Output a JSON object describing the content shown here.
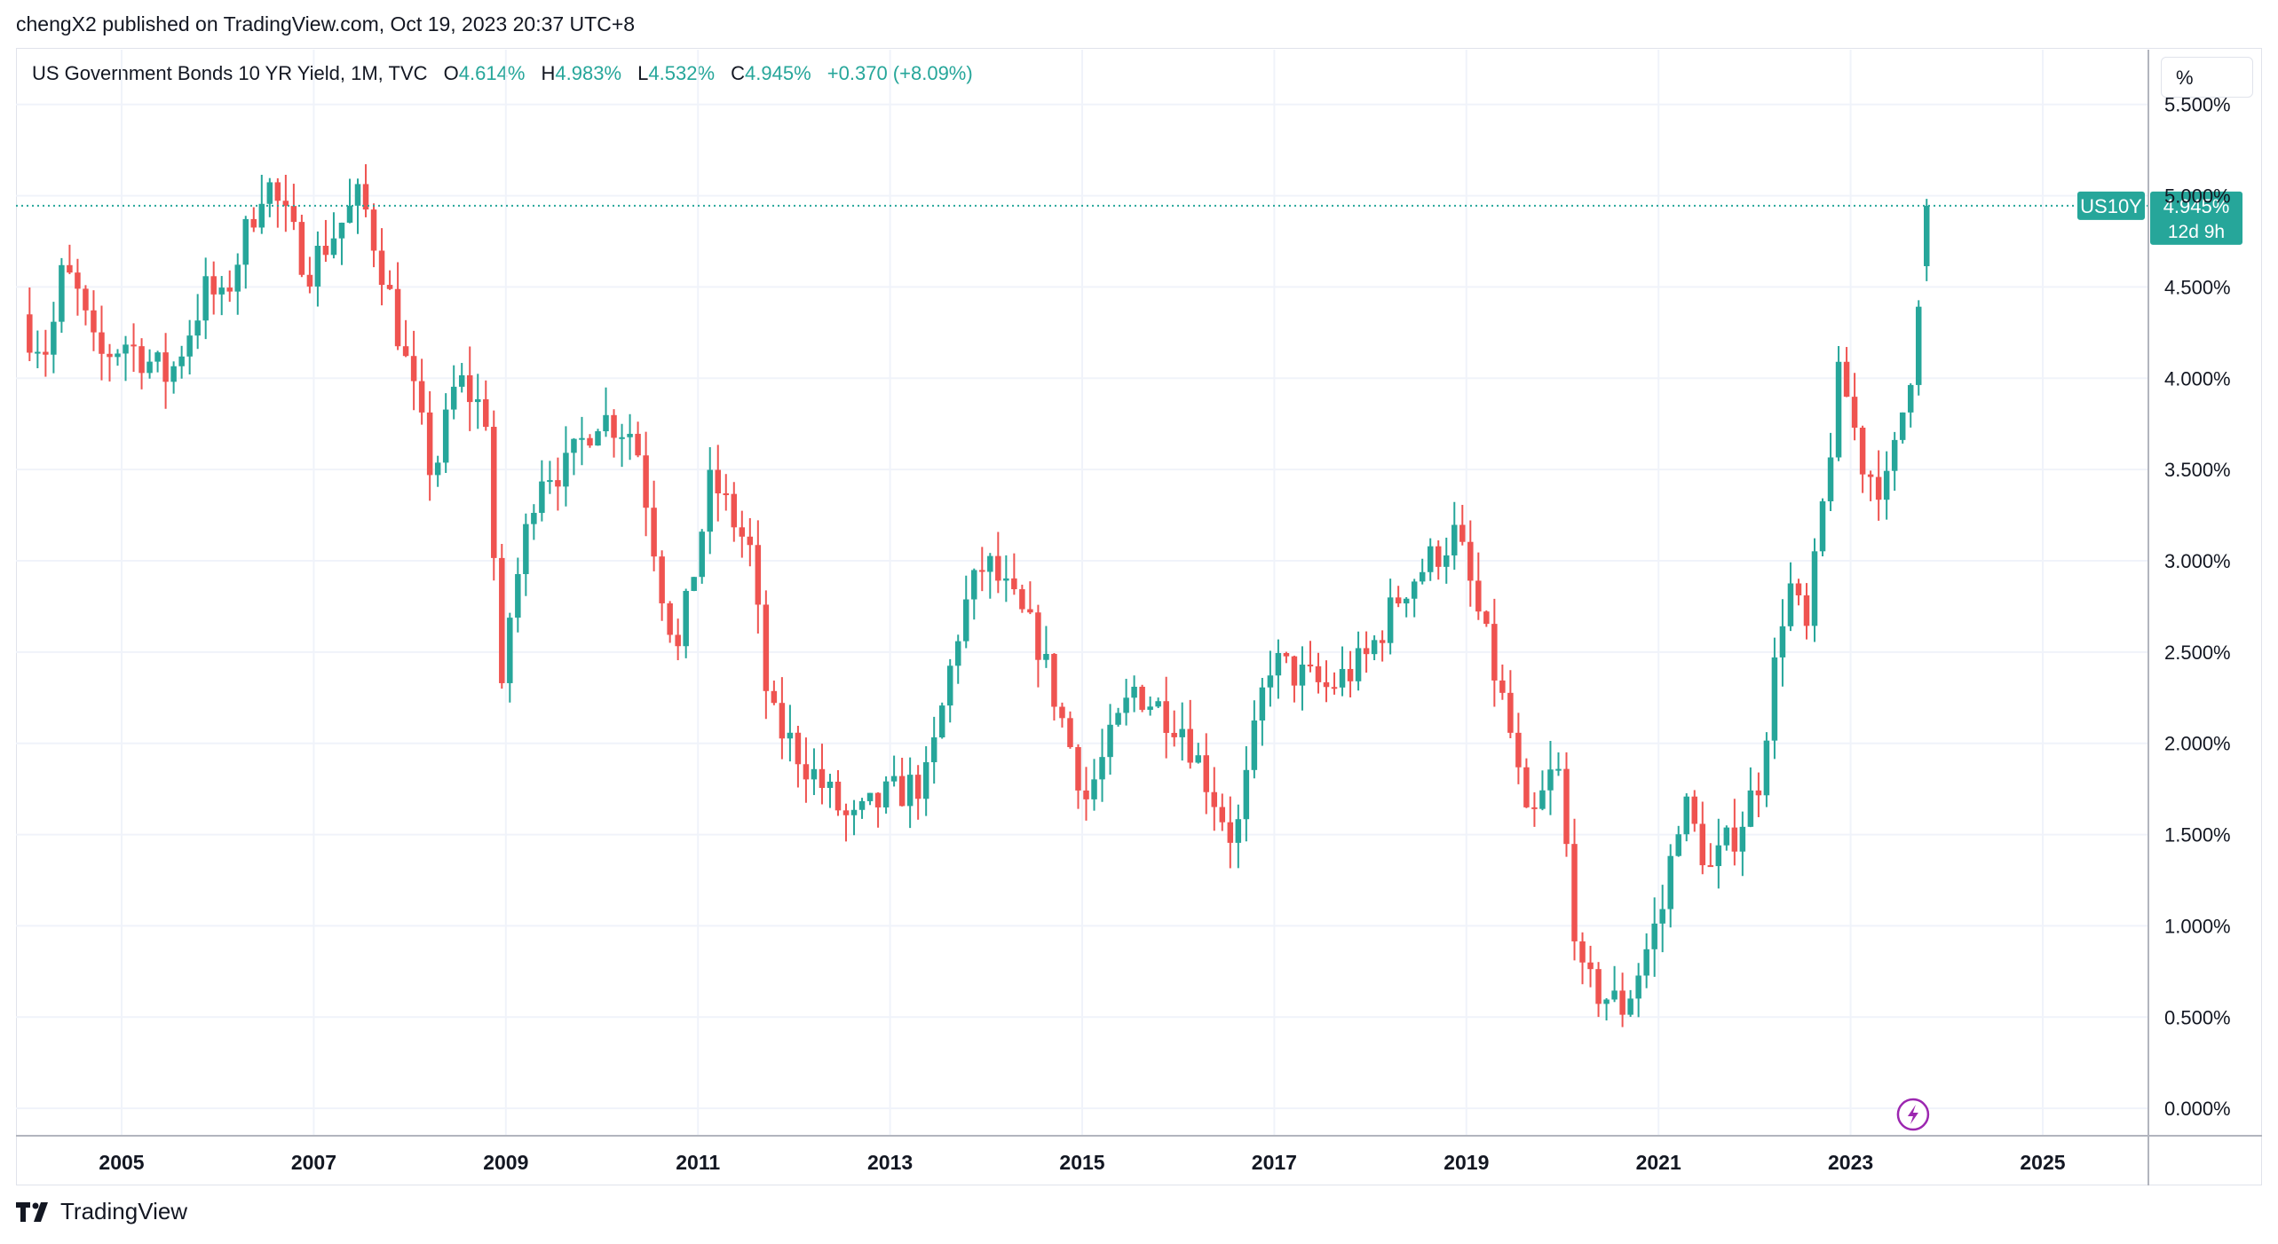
{
  "publisher_line": "chengX2 published on TradingView.com, Oct 19, 2023 20:37 UTC+8",
  "legend": {
    "symbol": "US Government Bonds 10 YR Yield, 1M, TVC",
    "o_label": "O",
    "o_value": "4.614%",
    "h_label": "H",
    "h_value": "4.983%",
    "l_label": "L",
    "l_value": "4.532%",
    "c_label": "C",
    "c_value": "4.945%",
    "change": "+0.370 (+8.09%)"
  },
  "unit_label": "%",
  "last_price": {
    "ticker": "US10Y",
    "value": "4.945%",
    "countdown": "12d 9h",
    "level": 4.945
  },
  "footer": {
    "brand": "TradingView"
  },
  "colors": {
    "up": "#26a69a",
    "down": "#ef5350",
    "grid": "#f0f3fa",
    "accent": "#9c27b0"
  },
  "icons": {
    "logo": "tradingview-logo-icon",
    "flash": "lightning-icon"
  },
  "chart_data": {
    "type": "candlestick",
    "title": "US Government Bonds 10 YR Yield, 1M, TVC",
    "interval": "1M",
    "xlabel": "",
    "ylabel": "%",
    "x_range": [
      2003.9,
      2026.1
    ],
    "ylim": [
      -0.15,
      5.8
    ],
    "x_ticks": [
      "2005",
      "2007",
      "2009",
      "2011",
      "2013",
      "2015",
      "2017",
      "2019",
      "2021",
      "2023",
      "2025"
    ],
    "y_ticks": [
      "5.500%",
      "5.000%",
      "4.500%",
      "4.000%",
      "3.500%",
      "3.000%",
      "2.500%",
      "2.000%",
      "1.500%",
      "1.000%",
      "0.500%",
      "0.000%"
    ],
    "anchors_year_close": [
      [
        2004.0,
        4.25
      ],
      [
        2004.2,
        4.15
      ],
      [
        2004.35,
        4.6
      ],
      [
        2004.5,
        4.45
      ],
      [
        2004.7,
        4.1
      ],
      [
        2005.0,
        4.2
      ],
      [
        2005.45,
        4.0
      ],
      [
        2005.85,
        4.5
      ],
      [
        2006.0,
        4.4
      ],
      [
        2006.45,
        5.1
      ],
      [
        2006.9,
        4.6
      ],
      [
        2007.45,
        5.0
      ],
      [
        2007.7,
        4.55
      ],
      [
        2008.0,
        3.9
      ],
      [
        2008.2,
        3.45
      ],
      [
        2008.45,
        4.0
      ],
      [
        2008.75,
        3.8
      ],
      [
        2008.92,
        2.2
      ],
      [
        2009.0,
        2.7
      ],
      [
        2009.3,
        3.5
      ],
      [
        2009.6,
        3.5
      ],
      [
        2009.9,
        3.8
      ],
      [
        2010.3,
        3.7
      ],
      [
        2010.6,
        2.8
      ],
      [
        2010.75,
        2.5
      ],
      [
        2011.1,
        3.45
      ],
      [
        2011.5,
        3.05
      ],
      [
        2011.7,
        2.15
      ],
      [
        2012.0,
        1.95
      ],
      [
        2012.55,
        1.55
      ],
      [
        2012.9,
        1.7
      ],
      [
        2013.35,
        1.8
      ],
      [
        2013.7,
        2.7
      ],
      [
        2013.95,
        3.0
      ],
      [
        2014.5,
        2.55
      ],
      [
        2015.0,
        1.7
      ],
      [
        2015.5,
        2.3
      ],
      [
        2016.0,
        2.1
      ],
      [
        2016.55,
        1.45
      ],
      [
        2016.9,
        2.45
      ],
      [
        2017.5,
        2.3
      ],
      [
        2017.9,
        2.45
      ],
      [
        2018.3,
        2.85
      ],
      [
        2018.85,
        3.15
      ],
      [
        2019.4,
        2.1
      ],
      [
        2019.6,
        1.5
      ],
      [
        2019.9,
        1.9
      ],
      [
        2020.15,
        0.7
      ],
      [
        2020.6,
        0.55
      ],
      [
        2021.0,
        1.1
      ],
      [
        2021.2,
        1.7
      ],
      [
        2021.5,
        1.3
      ],
      [
        2021.8,
        1.55
      ],
      [
        2022.0,
        1.8
      ],
      [
        2022.3,
        2.9
      ],
      [
        2022.5,
        2.6
      ],
      [
        2022.85,
        4.05
      ],
      [
        2023.1,
        3.5
      ],
      [
        2023.35,
        3.4
      ],
      [
        2023.6,
        4.1
      ],
      [
        2023.75,
        4.945
      ]
    ]
  }
}
